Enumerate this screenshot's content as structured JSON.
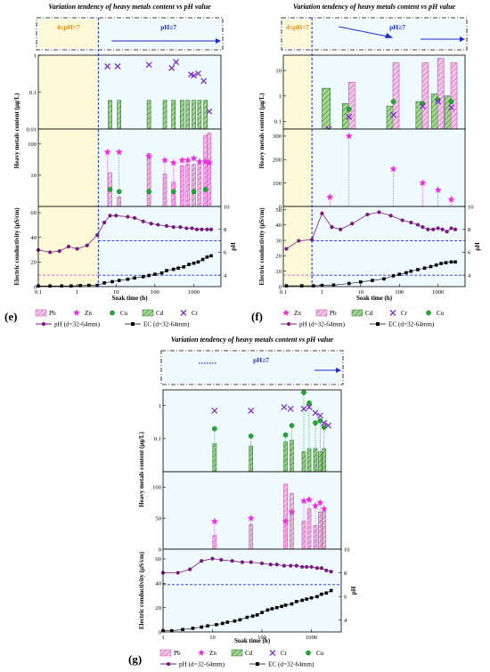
{
  "figure_labels": [
    "(e)",
    "(f)",
    "(g)"
  ],
  "common": {
    "title": "Variation tendency of heavy metals content vs pH value",
    "xlabel": "Soak time (h)",
    "ylabel_hm": "Heavy metals content (µg/L)",
    "ylabel_ec": "Electric conductivity (µS/cm)",
    "ylabel_ph": "pH",
    "ph_low_label": "4≤pH<7",
    "ph_high_label": "pH≥7",
    "legend": {
      "pb": "Pb",
      "zn": "Zn",
      "cu": "Cu",
      "cd": "Cd",
      "cr": "Cr",
      "ph": "pH (d=32-64mm)",
      "ec": "EC (d=32-64mm)"
    }
  },
  "colors": {
    "pb": "#f2c6ea",
    "pb_edge": "#c050a8",
    "zn": "#ee2ee0",
    "cu": "#1faa32",
    "cd": "#a2d890",
    "cd_edge": "#2f6e2a",
    "cr": "#8030c8",
    "ph": "#7a1a80",
    "ec": "#000000",
    "guide": "#1e2bd0",
    "low_bg": "#fff9d8",
    "high_bg": "#eefaff",
    "low_text": "#e88a10",
    "high_text": "#1e2bd0"
  },
  "chart_data": [
    {
      "panel": "(e)",
      "type": "bar",
      "transition_time_h": 3.5,
      "x_range": [
        0.1,
        5000
      ],
      "x_scale": "log",
      "x_ticks": [
        "0.1",
        "1",
        "10",
        "100",
        "1000"
      ],
      "top": {
        "scale": "log",
        "ylim": [
          0.01,
          1
        ],
        "ticks": [
          "0.01",
          "0.1",
          "1"
        ],
        "cd": [
          [
            7,
            0.06
          ],
          [
            12,
            0.06
          ],
          [
            70,
            0.06
          ],
          [
            180,
            0.06
          ],
          [
            300,
            0.06
          ],
          [
            500,
            0.06
          ],
          [
            700,
            0.06
          ],
          [
            1000,
            0.06
          ],
          [
            1400,
            0.06
          ],
          [
            2000,
            0.06
          ]
        ],
        "cr": [
          [
            6,
            0.5
          ],
          [
            11,
            0.5
          ],
          [
            70,
            0.55
          ],
          [
            270,
            0.45
          ],
          [
            350,
            0.65
          ],
          [
            850,
            0.3
          ],
          [
            1000,
            0.28
          ],
          [
            1300,
            0.32
          ],
          [
            1800,
            0.2
          ],
          [
            2500,
            0.03
          ]
        ]
      },
      "mid": {
        "scale": "log",
        "ylim": [
          1,
          300
        ],
        "ticks": [
          "10",
          "100"
        ],
        "pb": [
          [
            7,
            12
          ],
          [
            12,
            2
          ],
          [
            70,
            50
          ],
          [
            180,
            11
          ],
          [
            300,
            6
          ],
          [
            500,
            20
          ],
          [
            700,
            22
          ],
          [
            1000,
            22
          ],
          [
            1400,
            24
          ],
          [
            2000,
            190
          ],
          [
            2500,
            220
          ]
        ],
        "zn": [
          [
            6,
            55
          ],
          [
            12,
            55
          ],
          [
            70,
            40
          ],
          [
            180,
            30
          ],
          [
            300,
            25
          ],
          [
            500,
            30
          ],
          [
            700,
            30
          ],
          [
            1000,
            35
          ],
          [
            1400,
            27
          ],
          [
            2000,
            27
          ],
          [
            2500,
            25
          ]
        ],
        "cu": [
          [
            7,
            3.5
          ],
          [
            12,
            3
          ],
          [
            70,
            3
          ],
          [
            300,
            3
          ],
          [
            1000,
            3
          ],
          [
            2000,
            3.5
          ]
        ]
      },
      "bottom": {
        "ylim": [
          0,
          65
        ],
        "ticks": [
          "0",
          "20",
          "40",
          "60"
        ],
        "ph_ylim": [
          3,
          10
        ],
        "ph_ticks": [
          "4",
          "6",
          "8",
          "10"
        ],
        "ph_ref": [
          7,
          4
        ],
        "ph": [
          [
            0.1,
            6.2
          ],
          [
            0.2,
            6.0
          ],
          [
            0.35,
            6.1
          ],
          [
            0.6,
            6.5
          ],
          [
            1,
            6.3
          ],
          [
            1.8,
            6.6
          ],
          [
            3.3,
            7.5
          ],
          [
            5,
            8.6
          ],
          [
            7,
            9.2
          ],
          [
            10,
            9.2
          ],
          [
            20,
            9.1
          ],
          [
            30,
            9.0
          ],
          [
            50,
            8.7
          ],
          [
            80,
            8.5
          ],
          [
            120,
            8.4
          ],
          [
            200,
            8.3
          ],
          [
            300,
            8.2
          ],
          [
            450,
            8.2
          ],
          [
            650,
            8.1
          ],
          [
            900,
            8.1
          ],
          [
            1200,
            8.0
          ],
          [
            1600,
            8.0
          ],
          [
            2200,
            8.0
          ],
          [
            2800,
            8.0
          ]
        ],
        "ec": [
          [
            0.1,
            0.5
          ],
          [
            0.2,
            0.5
          ],
          [
            0.4,
            0.5
          ],
          [
            0.7,
            0.5
          ],
          [
            1.2,
            0.8
          ],
          [
            2,
            1
          ],
          [
            3.3,
            1
          ],
          [
            5,
            3
          ],
          [
            8,
            4
          ],
          [
            12,
            5
          ],
          [
            20,
            6
          ],
          [
            30,
            7
          ],
          [
            50,
            8
          ],
          [
            70,
            9
          ],
          [
            100,
            10
          ],
          [
            150,
            11
          ],
          [
            200,
            13
          ],
          [
            300,
            14
          ],
          [
            400,
            15
          ],
          [
            550,
            16
          ],
          [
            750,
            18
          ],
          [
            1000,
            19
          ],
          [
            1300,
            20
          ],
          [
            1700,
            22
          ],
          [
            2200,
            24
          ],
          [
            2800,
            25
          ]
        ]
      }
    },
    {
      "panel": "(f)",
      "type": "bar",
      "transition_time_h": 0.55,
      "x_range": [
        0.1,
        5000
      ],
      "x_scale": "log",
      "x_ticks": [
        "0.1",
        "1",
        "10",
        "100",
        "1000"
      ],
      "top": {
        "scale": "log",
        "ylim": [
          0.05,
          40
        ],
        "ticks": [
          "0.1",
          "1",
          "10"
        ],
        "cd": [
          [
            1.5,
            2.0
          ],
          [
            5,
            0.5
          ],
          [
            70,
            0.4
          ],
          [
            400,
            0.6
          ],
          [
            1000,
            1.2
          ],
          [
            2200,
            1.0
          ]
        ],
        "pb": [
          [
            5,
            3.5
          ],
          [
            70,
            20
          ],
          [
            400,
            20
          ],
          [
            1000,
            30
          ],
          [
            2200,
            20
          ]
        ],
        "cu": [
          [
            5,
            0.3
          ],
          [
            70,
            0.6
          ],
          [
            400,
            0.5
          ],
          [
            1000,
            0.7
          ],
          [
            2200,
            0.6
          ]
        ],
        "cr": [
          [
            1.5,
            0.05
          ],
          [
            5,
            0.15
          ],
          [
            70,
            0.18
          ],
          [
            400,
            0.4
          ],
          [
            1000,
            0.6
          ],
          [
            2200,
            0.35
          ]
        ]
      },
      "mid": {
        "scale": "linear",
        "ylim": [
          0,
          330
        ],
        "ticks": [
          "0",
          "100",
          "200",
          "300"
        ],
        "zn": [
          [
            1.6,
            40
          ],
          [
            5,
            300
          ],
          [
            70,
            160
          ],
          [
            400,
            100
          ],
          [
            1000,
            70
          ],
          [
            2200,
            30
          ]
        ]
      },
      "bottom": {
        "ylim": [
          0,
          52
        ],
        "ticks": [
          "0",
          "10",
          "20",
          "30",
          "40",
          "50"
        ],
        "ph_ylim": [
          3,
          10
        ],
        "ph_ticks": [
          "4",
          "6",
          "8",
          "10"
        ],
        "ph_ref": [
          7,
          4
        ],
        "ph": [
          [
            0.12,
            6.3
          ],
          [
            0.25,
            7.0
          ],
          [
            0.55,
            7.1
          ],
          [
            1,
            9.4
          ],
          [
            1.8,
            8.2
          ],
          [
            3,
            8.0
          ],
          [
            6,
            8.5
          ],
          [
            15,
            9.3
          ],
          [
            30,
            9.5
          ],
          [
            60,
            9.2
          ],
          [
            120,
            8.8
          ],
          [
            200,
            8.6
          ],
          [
            300,
            8.4
          ],
          [
            400,
            8.2
          ],
          [
            550,
            8.0
          ],
          [
            750,
            8.0
          ],
          [
            1000,
            8.1
          ],
          [
            1300,
            8.0
          ],
          [
            1700,
            7.8
          ],
          [
            2200,
            8.1
          ],
          [
            2800,
            8.0
          ]
        ],
        "ec": [
          [
            0.12,
            0.5
          ],
          [
            0.3,
            0.5
          ],
          [
            0.6,
            0.5
          ],
          [
            1,
            0.8
          ],
          [
            2,
            1
          ],
          [
            5,
            2
          ],
          [
            10,
            3
          ],
          [
            20,
            4
          ],
          [
            40,
            5
          ],
          [
            70,
            7
          ],
          [
            100,
            8
          ],
          [
            150,
            9
          ],
          [
            200,
            10
          ],
          [
            300,
            11
          ],
          [
            450,
            12
          ],
          [
            650,
            13
          ],
          [
            900,
            14
          ],
          [
            1200,
            15
          ],
          [
            1600,
            15.5
          ],
          [
            2200,
            16
          ],
          [
            2800,
            16
          ]
        ]
      }
    },
    {
      "panel": "(g)",
      "type": "bar",
      "transition_time_h": 0,
      "x_range": [
        1,
        4000
      ],
      "x_scale": "log",
      "x_ticks": [
        "1",
        "10",
        "100",
        "1000"
      ],
      "top": {
        "scale": "log",
        "ylim": [
          0.01,
          3
        ],
        "ticks": [
          "0.1",
          "1"
        ],
        "cd": [
          [
            11,
            0.07
          ],
          [
            60,
            0.06
          ],
          [
            300,
            0.08
          ],
          [
            400,
            0.09
          ],
          [
            700,
            0.04
          ],
          [
            900,
            0.05
          ],
          [
            1200,
            0.05
          ],
          [
            1500,
            0.04
          ],
          [
            1800,
            0.05
          ]
        ],
        "cu": [
          [
            11,
            0.2
          ],
          [
            60,
            0.12
          ],
          [
            300,
            0.13
          ],
          [
            400,
            0.25
          ],
          [
            700,
            2.5
          ],
          [
            900,
            1.2
          ],
          [
            1200,
            0.3
          ],
          [
            1500,
            0.35
          ],
          [
            1800,
            0.22
          ]
        ],
        "cr": [
          [
            11,
            0.7
          ],
          [
            60,
            0.7
          ],
          [
            280,
            0.9
          ],
          [
            380,
            0.8
          ],
          [
            700,
            0.8
          ],
          [
            900,
            0.9
          ],
          [
            1200,
            0.6
          ],
          [
            1500,
            0.5
          ],
          [
            1800,
            0.3
          ],
          [
            2200,
            0.25
          ]
        ]
      },
      "mid": {
        "scale": "linear",
        "ylim": [
          0,
          125
        ],
        "ticks": [
          "0",
          "50",
          "100"
        ],
        "pb": [
          [
            11,
            22
          ],
          [
            60,
            40
          ],
          [
            300,
            105
          ],
          [
            400,
            90
          ],
          [
            700,
            45
          ],
          [
            900,
            65
          ],
          [
            1200,
            38
          ],
          [
            1500,
            60
          ],
          [
            1800,
            62
          ]
        ],
        "zn": [
          [
            11,
            45
          ],
          [
            60,
            50
          ],
          [
            300,
            45
          ],
          [
            400,
            60
          ],
          [
            700,
            78
          ],
          [
            900,
            80
          ],
          [
            1200,
            70
          ],
          [
            1500,
            75
          ],
          [
            1800,
            65
          ]
        ]
      },
      "bottom": {
        "ylim": [
          0,
          68
        ],
        "ticks": [
          "0",
          "20",
          "40",
          "60"
        ],
        "ph_ylim": [
          3,
          10
        ],
        "ph_ticks": [
          "4",
          "6",
          "8",
          "10"
        ],
        "ph_ref": [
          7
        ],
        "ph": [
          [
            1,
            8.0
          ],
          [
            2,
            8.0
          ],
          [
            3.5,
            8.3
          ],
          [
            6,
            9.0
          ],
          [
            10,
            9.2
          ],
          [
            15,
            9.1
          ],
          [
            25,
            9.0
          ],
          [
            40,
            8.9
          ],
          [
            60,
            8.9
          ],
          [
            100,
            8.8
          ],
          [
            150,
            8.7
          ],
          [
            200,
            8.7
          ],
          [
            280,
            8.6
          ],
          [
            380,
            8.6
          ],
          [
            500,
            8.6
          ],
          [
            650,
            8.5
          ],
          [
            800,
            8.5
          ],
          [
            1000,
            8.5
          ],
          [
            1300,
            8.4
          ],
          [
            1600,
            8.4
          ],
          [
            2000,
            8.2
          ],
          [
            2500,
            8.1
          ]
        ],
        "ec": [
          [
            1,
            1
          ],
          [
            1.5,
            1
          ],
          [
            2.5,
            2
          ],
          [
            4,
            3
          ],
          [
            6,
            4
          ],
          [
            8,
            5
          ],
          [
            12,
            6
          ],
          [
            16,
            7
          ],
          [
            20,
            8
          ],
          [
            28,
            9
          ],
          [
            36,
            10
          ],
          [
            50,
            12
          ],
          [
            65,
            13
          ],
          [
            80,
            14
          ],
          [
            100,
            16
          ],
          [
            130,
            18
          ],
          [
            160,
            19
          ],
          [
            200,
            20
          ],
          [
            250,
            21
          ],
          [
            300,
            22
          ],
          [
            400,
            23
          ],
          [
            500,
            25
          ],
          [
            650,
            26
          ],
          [
            800,
            27
          ],
          [
            1000,
            28
          ],
          [
            1300,
            29
          ],
          [
            1600,
            31
          ],
          [
            2000,
            32
          ],
          [
            2500,
            34
          ]
        ]
      }
    }
  ]
}
